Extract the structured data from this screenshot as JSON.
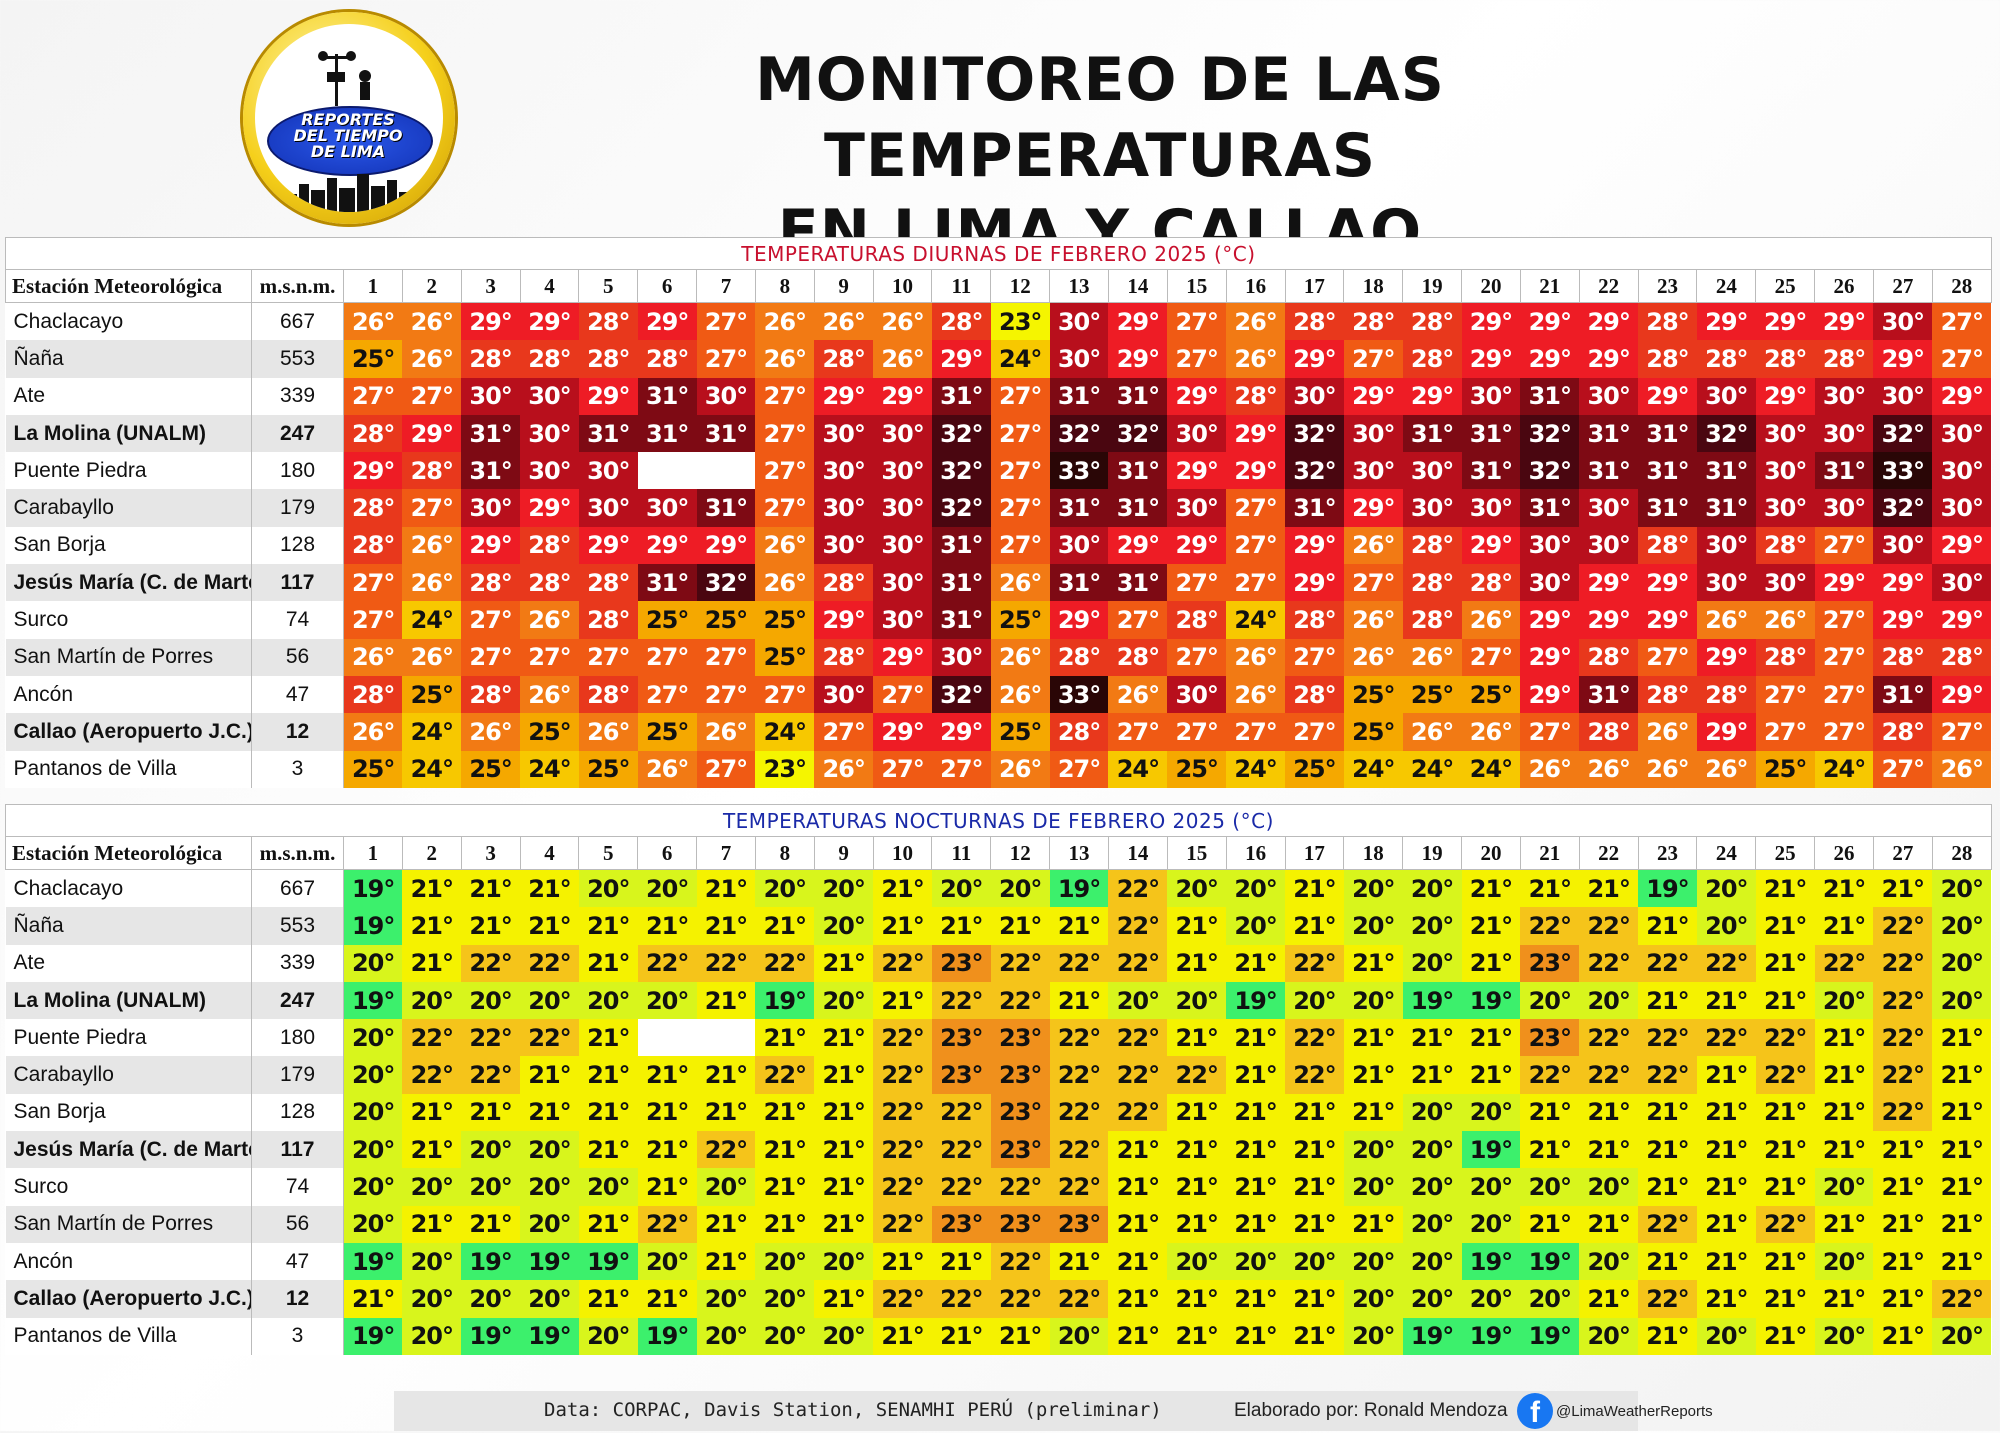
{
  "logo": {
    "text_line1": "REPORTES",
    "text_line2": "DEL TIEMPO",
    "text_line3": "DE LIMA"
  },
  "header": {
    "title_line1": "MONITOREO DE LAS TEMPERATURAS",
    "title_line2": "EN LIMA Y CALLAO"
  },
  "columns": {
    "station": "Estación Meteorológica",
    "elevation": "m.s.n.m.",
    "days": [
      "1",
      "2",
      "3",
      "4",
      "5",
      "6",
      "7",
      "8",
      "9",
      "10",
      "11",
      "12",
      "13",
      "14",
      "15",
      "16",
      "17",
      "18",
      "19",
      "20",
      "21",
      "22",
      "23",
      "24",
      "25",
      "26",
      "27",
      "28"
    ]
  },
  "stations": [
    {
      "name": "Chaclacayo",
      "elevation": "667",
      "bold": false
    },
    {
      "name": "Ñaña",
      "elevation": "553",
      "bold": false
    },
    {
      "name": "Ate",
      "elevation": "339",
      "bold": false
    },
    {
      "name": "La Molina (UNALM)",
      "elevation": "247",
      "bold": true
    },
    {
      "name": "Puente Piedra",
      "elevation": "180",
      "bold": false
    },
    {
      "name": "Carabayllo",
      "elevation": "179",
      "bold": false
    },
    {
      "name": "San Borja",
      "elevation": "128",
      "bold": false
    },
    {
      "name": "Jesús María (C. de Marte)",
      "elevation": "117",
      "bold": true
    },
    {
      "name": "Surco",
      "elevation": "74",
      "bold": false
    },
    {
      "name": "San Martín de Porres",
      "elevation": "56",
      "bold": false
    },
    {
      "name": "Ancón",
      "elevation": "47",
      "bold": false
    },
    {
      "name": "Callao (Aeropuerto J.C.)",
      "elevation": "12",
      "bold": true
    },
    {
      "name": "Pantanos de Villa",
      "elevation": "3",
      "bold": false
    }
  ],
  "chart_data": [
    {
      "type": "heatmap",
      "title": "TEMPERATURAS DIURNAS DE FEBRERO 2025 (°C)",
      "unit_suffix": "°",
      "title_color": "#c8102e",
      "color_scale": {
        "23": "#f5f500",
        "24": "#f7c800",
        "25": "#f5a800",
        "26": "#f27a14",
        "27": "#f05a14",
        "28": "#e8381c",
        "29": "#ee1c25",
        "30": "#b80f1c",
        "31": "#7e0a14",
        "32": "#4a0610",
        "33": "#2a0606"
      },
      "values": [
        [
          26,
          26,
          29,
          29,
          28,
          29,
          27,
          26,
          26,
          26,
          28,
          23,
          30,
          29,
          27,
          26,
          28,
          28,
          28,
          29,
          29,
          29,
          28,
          29,
          29,
          29,
          30,
          27
        ],
        [
          25,
          26,
          28,
          28,
          28,
          28,
          27,
          26,
          28,
          26,
          29,
          24,
          30,
          29,
          27,
          26,
          29,
          27,
          28,
          29,
          29,
          29,
          28,
          28,
          28,
          28,
          29,
          27
        ],
        [
          27,
          27,
          30,
          30,
          29,
          31,
          30,
          27,
          29,
          29,
          31,
          27,
          31,
          31,
          29,
          28,
          30,
          29,
          29,
          30,
          31,
          30,
          29,
          30,
          29,
          30,
          30,
          29
        ],
        [
          28,
          29,
          31,
          30,
          31,
          31,
          31,
          27,
          30,
          30,
          32,
          27,
          32,
          32,
          30,
          29,
          32,
          30,
          31,
          31,
          32,
          31,
          31,
          32,
          30,
          30,
          32,
          30
        ],
        [
          29,
          28,
          31,
          30,
          30,
          null,
          null,
          27,
          30,
          30,
          32,
          27,
          33,
          31,
          29,
          29,
          32,
          30,
          30,
          31,
          32,
          31,
          31,
          31,
          30,
          31,
          33,
          30
        ],
        [
          28,
          27,
          30,
          29,
          30,
          30,
          31,
          27,
          30,
          30,
          32,
          27,
          31,
          31,
          30,
          27,
          31,
          29,
          30,
          30,
          31,
          30,
          31,
          31,
          30,
          30,
          32,
          30
        ],
        [
          28,
          26,
          29,
          28,
          29,
          29,
          29,
          26,
          30,
          30,
          31,
          27,
          30,
          29,
          29,
          27,
          29,
          26,
          28,
          29,
          30,
          30,
          28,
          30,
          28,
          27,
          30,
          29
        ],
        [
          27,
          26,
          28,
          28,
          28,
          31,
          32,
          26,
          28,
          30,
          31,
          26,
          31,
          31,
          27,
          27,
          29,
          27,
          28,
          28,
          30,
          29,
          29,
          30,
          30,
          29,
          29,
          30
        ],
        [
          27,
          24,
          27,
          26,
          28,
          25,
          25,
          25,
          29,
          30,
          31,
          25,
          29,
          27,
          28,
          24,
          28,
          26,
          28,
          26,
          29,
          29,
          29,
          26,
          26,
          27,
          29,
          29
        ],
        [
          26,
          26,
          27,
          27,
          27,
          27,
          27,
          25,
          28,
          29,
          30,
          26,
          28,
          28,
          27,
          26,
          27,
          26,
          26,
          27,
          29,
          28,
          27,
          29,
          28,
          27,
          28,
          28
        ],
        [
          28,
          25,
          28,
          26,
          28,
          27,
          27,
          27,
          30,
          27,
          32,
          26,
          33,
          26,
          30,
          26,
          28,
          25,
          25,
          25,
          29,
          31,
          28,
          28,
          27,
          27,
          31,
          29
        ],
        [
          26,
          24,
          26,
          25,
          26,
          25,
          26,
          24,
          27,
          29,
          29,
          25,
          28,
          27,
          27,
          27,
          27,
          25,
          26,
          26,
          27,
          28,
          26,
          29,
          27,
          27,
          28,
          27
        ],
        [
          25,
          24,
          25,
          24,
          25,
          26,
          27,
          23,
          26,
          27,
          27,
          26,
          27,
          24,
          25,
          24,
          25,
          24,
          24,
          24,
          26,
          26,
          26,
          26,
          25,
          24,
          27,
          26
        ]
      ]
    },
    {
      "type": "heatmap",
      "title": "TEMPERATURAS NOCTURNAS DE FEBRERO 2025 (°C)",
      "unit_suffix": "°",
      "title_color": "#1a2aa8",
      "color_scale": {
        "19": "#3cf06c",
        "20": "#d8f51c",
        "21": "#f5f200",
        "22": "#f5c41a",
        "23": "#f0901c"
      },
      "values": [
        [
          19,
          21,
          21,
          21,
          20,
          20,
          21,
          20,
          20,
          21,
          20,
          20,
          19,
          22,
          20,
          20,
          21,
          20,
          20,
          21,
          21,
          21,
          19,
          20,
          21,
          21,
          21,
          20
        ],
        [
          19,
          21,
          21,
          21,
          21,
          21,
          21,
          21,
          20,
          21,
          21,
          21,
          21,
          22,
          21,
          20,
          21,
          20,
          20,
          21,
          22,
          22,
          21,
          20,
          21,
          21,
          22,
          20
        ],
        [
          20,
          21,
          22,
          22,
          21,
          22,
          22,
          22,
          21,
          22,
          23,
          22,
          22,
          22,
          21,
          21,
          22,
          21,
          20,
          21,
          23,
          22,
          22,
          22,
          21,
          22,
          22,
          20
        ],
        [
          19,
          20,
          20,
          20,
          20,
          20,
          21,
          19,
          20,
          21,
          22,
          22,
          21,
          20,
          20,
          19,
          20,
          20,
          19,
          19,
          20,
          20,
          21,
          21,
          21,
          20,
          22,
          20
        ],
        [
          20,
          22,
          22,
          22,
          21,
          null,
          null,
          21,
          21,
          22,
          23,
          23,
          22,
          22,
          21,
          21,
          22,
          21,
          21,
          21,
          23,
          22,
          22,
          22,
          22,
          21,
          22,
          21
        ],
        [
          20,
          22,
          22,
          21,
          21,
          21,
          21,
          22,
          21,
          22,
          23,
          23,
          22,
          22,
          22,
          21,
          22,
          21,
          21,
          21,
          22,
          22,
          22,
          21,
          22,
          21,
          22,
          21
        ],
        [
          20,
          21,
          21,
          21,
          21,
          21,
          21,
          21,
          21,
          22,
          22,
          23,
          22,
          22,
          21,
          21,
          21,
          21,
          20,
          20,
          21,
          21,
          21,
          21,
          21,
          21,
          22,
          21
        ],
        [
          20,
          21,
          20,
          20,
          21,
          21,
          22,
          21,
          21,
          22,
          22,
          23,
          22,
          21,
          21,
          21,
          21,
          20,
          20,
          19,
          21,
          21,
          21,
          21,
          21,
          21,
          21,
          21
        ],
        [
          20,
          20,
          20,
          20,
          20,
          21,
          20,
          21,
          21,
          22,
          22,
          22,
          22,
          21,
          21,
          21,
          21,
          20,
          20,
          20,
          20,
          20,
          21,
          21,
          21,
          20,
          21,
          21
        ],
        [
          20,
          21,
          21,
          20,
          21,
          22,
          21,
          21,
          21,
          22,
          23,
          23,
          23,
          21,
          21,
          21,
          21,
          21,
          20,
          20,
          21,
          21,
          22,
          21,
          22,
          21,
          21,
          21
        ],
        [
          19,
          20,
          19,
          19,
          19,
          20,
          21,
          20,
          20,
          21,
          21,
          22,
          21,
          21,
          20,
          20,
          20,
          20,
          20,
          19,
          19,
          20,
          21,
          21,
          21,
          20,
          21,
          21
        ],
        [
          21,
          20,
          20,
          20,
          21,
          21,
          20,
          20,
          21,
          22,
          22,
          22,
          22,
          21,
          21,
          21,
          21,
          20,
          20,
          20,
          20,
          21,
          22,
          21,
          21,
          21,
          21,
          22
        ],
        [
          19,
          20,
          19,
          19,
          20,
          19,
          20,
          20,
          20,
          21,
          21,
          21,
          20,
          21,
          21,
          21,
          21,
          20,
          19,
          19,
          19,
          20,
          21,
          20,
          21,
          20,
          21,
          20
        ]
      ]
    }
  ],
  "footer": {
    "source": "Data: CORPAC, Davis Station, SENAMHI PERÚ (preliminar)",
    "author": "Elaborado por: Ronald Mendoza",
    "social_icon": "facebook-icon",
    "handle": "@LimaWeatherReports"
  }
}
